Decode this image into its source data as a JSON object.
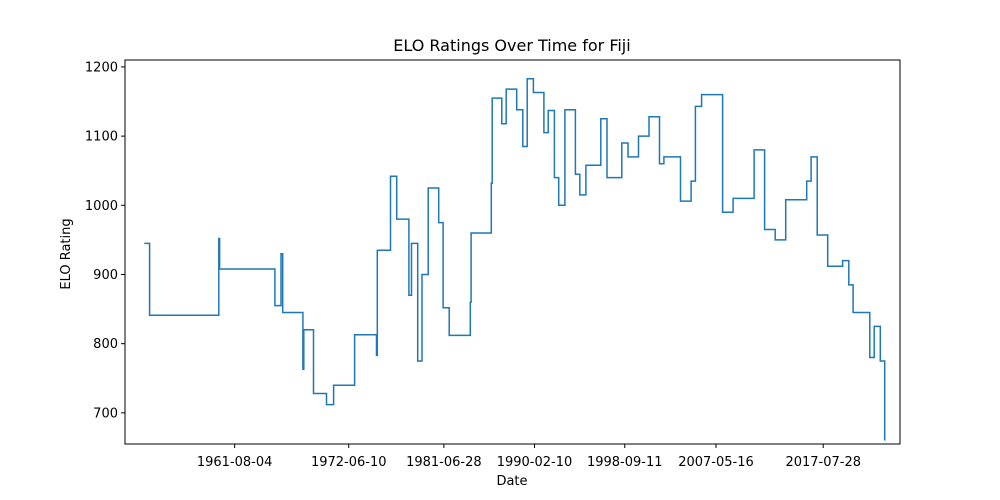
{
  "chart_data": {
    "type": "line",
    "title": "ELO Ratings Over Time for Fiji",
    "xlabel": "Date",
    "ylabel": "ELO Rating",
    "x_tick_labels": [
      "1961-08-04",
      "1972-06-10",
      "1981-06-28",
      "1990-02-10",
      "1998-09-11",
      "2007-05-16",
      "2017-07-28"
    ],
    "x_ticks": [
      "1961-08-04",
      "1972-06-10",
      "1981-06-28",
      "1990-02-10",
      "1998-09-11",
      "2007-05-16",
      "2017-07-28"
    ],
    "y_ticks": [
      700,
      800,
      900,
      1000,
      1100,
      1200
    ],
    "xlim": [
      "1951-03-01",
      "2024-11-15"
    ],
    "ylim": [
      655,
      1210
    ],
    "grid": false,
    "line_color": "#1f77b4",
    "series": [
      {
        "x": [
          "1953-01-01",
          "1953-06-01",
          "1953-07-01",
          "1959-01-01",
          "1960-01-01",
          "1960-02-01",
          "1960-03-01",
          "1965-01-01",
          "1965-06-01",
          "1966-01-01",
          "1966-03-01",
          "1968-01-01",
          "1968-02-01",
          "1968-03-01",
          "1969-01-01",
          "1969-02-01",
          "1970-01-01",
          "1970-05-01",
          "1971-01-01",
          "1972-01-01",
          "1973-01-01",
          "1975-01-01",
          "1975-02-01",
          "1975-03-01",
          "1976-06-01",
          "1977-01-01",
          "1978-01-01",
          "1978-03-01",
          "1978-06-01",
          "1979-01-01",
          "1979-03-01",
          "1979-06-01",
          "1980-01-01",
          "1980-06-01",
          "1981-01-01",
          "1981-03-01",
          "1981-06-01",
          "1981-08-01",
          "1982-01-01",
          "1984-01-01",
          "1984-02-01",
          "1984-06-01",
          "1986-01-01",
          "1986-02-01",
          "1987-01-01",
          "1987-06-01",
          "1988-06-01",
          "1988-09-01",
          "1989-01-01",
          "1989-03-01",
          "1989-06-01",
          "1990-01-01",
          "1991-01-01",
          "1991-06-01",
          "1992-01-01",
          "1992-06-01",
          "1993-01-01",
          "1994-01-01",
          "1994-06-01",
          "1995-01-01",
          "1996-01-01",
          "1996-06-01",
          "1997-01-01",
          "1998-01-01",
          "1998-06-01",
          "1999-01-01",
          "2000-01-01",
          "2001-01-01",
          "2002-01-01",
          "2002-06-01",
          "2003-01-01",
          "2004-01-01",
          "2005-01-01",
          "2005-06-01",
          "2006-01-01",
          "2008-01-01",
          "2009-01-01",
          "2010-01-01",
          "2011-01-01",
          "2012-01-01",
          "2013-01-01",
          "2014-01-01",
          "2016-01-01",
          "2016-06-01",
          "2017-01-01",
          "2018-01-01",
          "2018-06-01",
          "2019-01-01",
          "2019-06-01",
          "2020-01-01",
          "2020-06-01",
          "2022-01-01",
          "2022-06-01",
          "2023-01-01",
          "2023-06-01"
        ],
        "y": [
          945,
          945,
          841,
          841,
          841,
          952,
          908,
          908,
          855,
          930,
          845,
          845,
          763,
          820,
          820,
          728,
          728,
          712,
          740,
          740,
          813,
          813,
          783,
          935,
          1042,
          980,
          980,
          870,
          945,
          775,
          775,
          900,
          1025,
          1025,
          975,
          975,
          852,
          852,
          812,
          860,
          960,
          960,
          1032,
          1155,
          1118,
          1168,
          1138,
          1138,
          1085,
          1085,
          1183,
          1163,
          1105,
          1137,
          1040,
          1000,
          1138,
          1045,
          1015,
          1058,
          1058,
          1125,
          1040,
          1040,
          1090,
          1070,
          1100,
          1128,
          1060,
          1070,
          1070,
          1006,
          1035,
          1143,
          1160,
          990,
          1010,
          1010,
          1080,
          965,
          950,
          1008,
          1035,
          1070,
          957,
          912,
          912,
          912,
          920,
          885,
          845,
          780,
          825,
          775,
          660
        ]
      }
    ]
  }
}
